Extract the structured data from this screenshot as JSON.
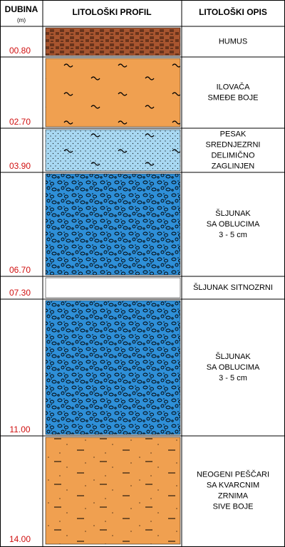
{
  "header": {
    "depth_title": "DUBINA",
    "depth_unit": "(m)",
    "profile_title": "LITOLOŠKI PROFIL",
    "description_title": "LITOLOŠKI OPIS"
  },
  "layers": [
    {
      "depth": "00.80",
      "description": [
        "HUMUS"
      ],
      "color": "#a8552f"
    },
    {
      "depth": "02.70",
      "description": [
        "ILOVAČA",
        "SMEĐE BOJE"
      ],
      "color": "#f0a050"
    },
    {
      "depth": "03.90",
      "description": [
        "PESAK",
        "SREDNJEZRNI",
        "DELIMIČNO",
        "ZAGLINJEN"
      ],
      "color": "#a8d8f2"
    },
    {
      "depth": "06.70",
      "description": [
        "ŠLJUNAK",
        "SA OBLUCIMA",
        "3 - 5 cm"
      ],
      "color": "#2e8fd8"
    },
    {
      "depth": "07.30",
      "description": [
        "ŠLJUNAK SITNOZRNI"
      ],
      "color": "#ffffff"
    },
    {
      "depth": "11.00",
      "description": [
        "ŠLJUNAK",
        "SA OBLUCIMA",
        "3 - 5 cm"
      ],
      "color": "#2e8fd8"
    },
    {
      "depth": "14.00",
      "description": [
        "NEOGENI PEŠČARI",
        "SA KVARCNIM",
        "ZRNIMA",
        "SIVE BOJE"
      ],
      "color": "#f0a050"
    }
  ]
}
